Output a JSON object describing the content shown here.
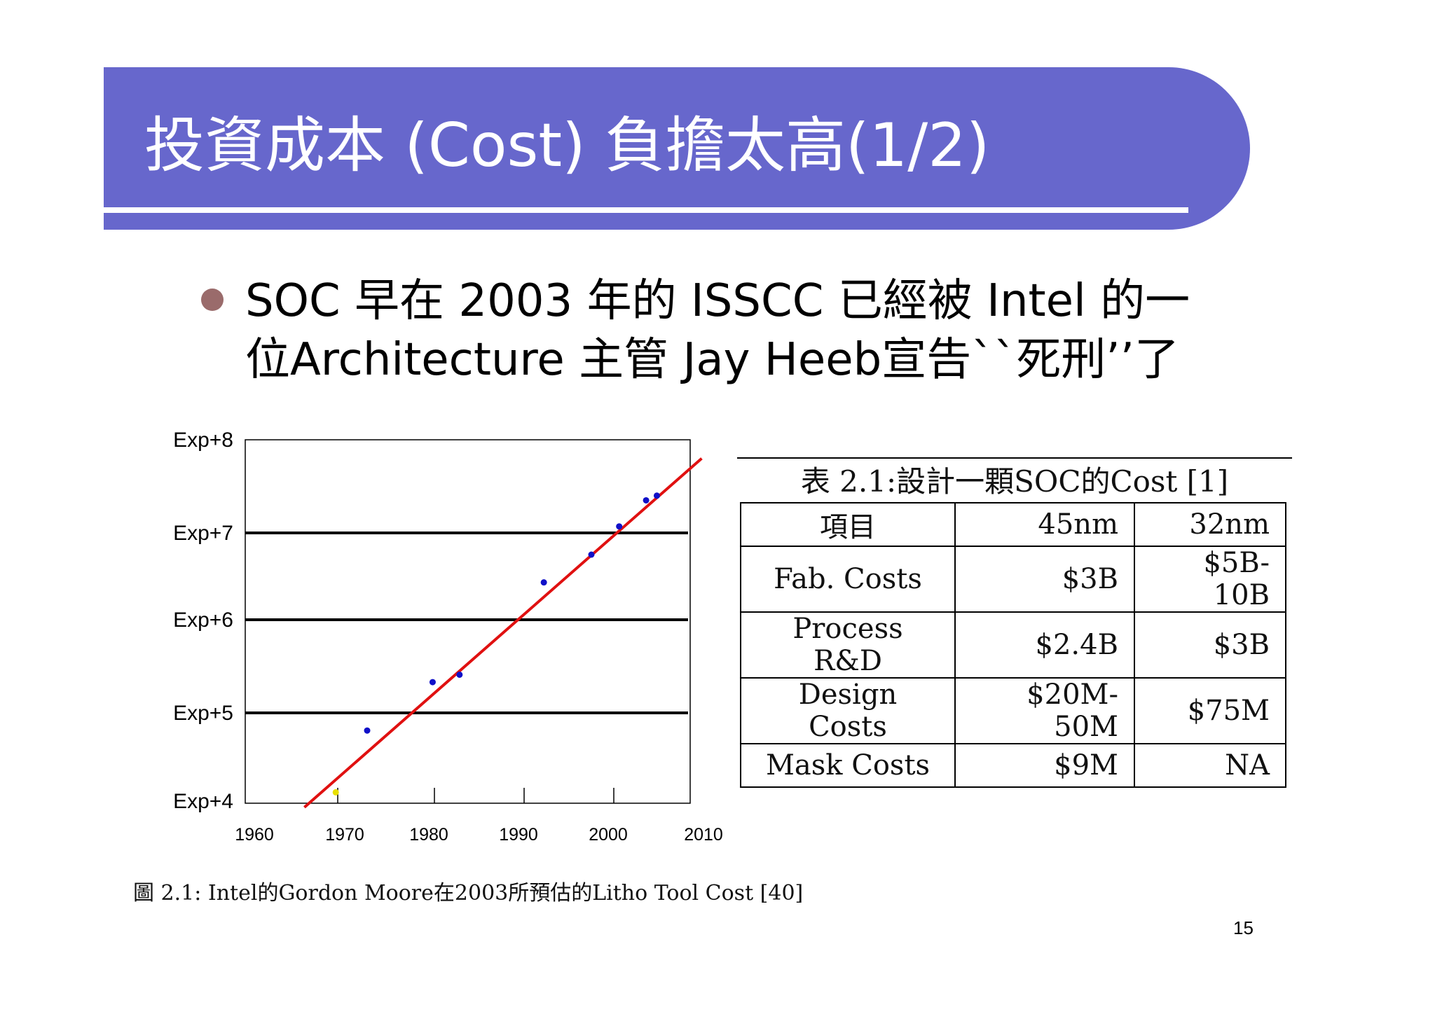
{
  "slide": {
    "title": "投資成本 (Cost) 負擔太高(1/2)",
    "bullet_line1": "SOC  早在 2003 年的 ISSCC 已經被 Intel 的一",
    "bullet_line2": "位Architecture 主管 Jay Heeb宣告``死刑’’了",
    "page_number": "15",
    "colors": {
      "title_bar": "#6767cc",
      "bullet": "#9a6b6b",
      "trend_line": "#e01010",
      "points": "#1010c8"
    }
  },
  "figure_caption": "圖 2.1: Intel的Gordon Moore在2003所預估的Litho Tool Cost [40]",
  "table": {
    "caption": "表 2.1:設計一顆SOC的Cost [1]",
    "header": [
      "項目",
      "45nm",
      "32nm"
    ],
    "rows": [
      [
        "Fab. Costs",
        "$3B",
        "$5B-10B"
      ],
      [
        "Process R&D",
        "$2.4B",
        "$3B"
      ],
      [
        "Design Costs",
        "$20M-50M",
        "$75M"
      ],
      [
        "Mask Costs",
        "$9M",
        "NA"
      ]
    ]
  },
  "chart_data": {
    "type": "scatter",
    "title": "",
    "xlabel": "",
    "ylabel": "",
    "xlim": [
      1960,
      2010
    ],
    "ylim": [
      4,
      8
    ],
    "y_scale": "log",
    "x_ticks": [
      "1960",
      "1970",
      "1980",
      "1990",
      "2000",
      "2010"
    ],
    "y_ticks": [
      {
        "value": 4,
        "label": "Exp+4"
      },
      {
        "value": 5,
        "label": "Exp+5"
      },
      {
        "value": 6,
        "label": "Exp+6"
      },
      {
        "value": 7,
        "label": "Exp+7"
      },
      {
        "value": 8,
        "label": "Exp+8"
      }
    ],
    "grid": "horizontal lines at Exp+5, Exp+6, Exp+7",
    "points": [
      {
        "x": 1969,
        "y": 4.1
      },
      {
        "x": 1972.5,
        "y": 4.8
      },
      {
        "x": 1979.8,
        "y": 5.33
      },
      {
        "x": 1982.8,
        "y": 5.41
      },
      {
        "x": 1992.2,
        "y": 6.43
      },
      {
        "x": 1997.5,
        "y": 6.75
      },
      {
        "x": 2000.6,
        "y": 7.07
      },
      {
        "x": 2003.6,
        "y": 7.35
      },
      {
        "x": 2004.8,
        "y": 7.4
      }
    ],
    "trend_line": {
      "x": [
        1965.5,
        2009.8
      ],
      "y": [
        3.93,
        7.8
      ]
    }
  }
}
